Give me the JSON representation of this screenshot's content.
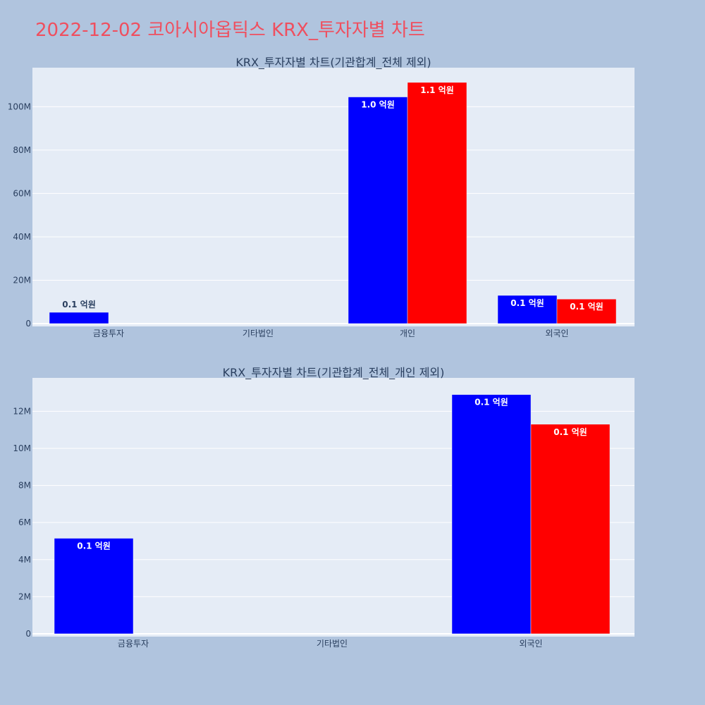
{
  "page": {
    "title": "2022-12-02 코아시아옵틱스 KRX_투자자별 차트"
  },
  "colors": {
    "paper": "#b0c4de",
    "plot_bg": "#e5ecf6",
    "grid": "#ffffff",
    "series1": "#0000ff",
    "series2": "#ff0000",
    "title": "#ef4f5f",
    "text": "#2a3f5f"
  },
  "chart_data": [
    {
      "type": "bar",
      "title": "KRX_투자자별 차트(기관합계_전체 제외)",
      "categories": [
        "금융투자",
        "기타법인",
        "개인",
        "외국인"
      ],
      "xlabel": "",
      "ylabel": "",
      "ylim": [
        0,
        118000000
      ],
      "yticks": [
        0,
        20000000,
        40000000,
        60000000,
        80000000,
        100000000
      ],
      "ytick_labels": [
        "0",
        "20M",
        "40M",
        "60M",
        "80M",
        "100M"
      ],
      "grid": true,
      "series": [
        {
          "color": "#0000ff",
          "values": [
            5200000,
            null,
            104500000,
            13000000
          ],
          "labels": [
            "0.1 억원",
            "",
            "1.0 억원",
            "0.1 억원"
          ]
        },
        {
          "color": "#ff0000",
          "values": [
            null,
            null,
            111200000,
            11300000
          ],
          "labels": [
            "",
            "",
            "1.1 억원",
            "0.1 억원"
          ]
        }
      ]
    },
    {
      "type": "bar",
      "title": "KRX_투자자별 차트(기관합계_전체_개인 제외)",
      "categories": [
        "금융투자",
        "기타법인",
        "외국인"
      ],
      "xlabel": "",
      "ylabel": "",
      "ylim": [
        0,
        13800000
      ],
      "yticks": [
        0,
        2000000,
        4000000,
        6000000,
        8000000,
        10000000,
        12000000
      ],
      "ytick_labels": [
        "0",
        "2M",
        "4M",
        "6M",
        "8M",
        "10M",
        "12M"
      ],
      "grid": true,
      "series": [
        {
          "color": "#0000ff",
          "values": [
            5150000,
            null,
            12900000
          ],
          "labels": [
            "0.1 억원",
            "",
            "0.1 억원"
          ]
        },
        {
          "color": "#ff0000",
          "values": [
            null,
            null,
            11300000
          ],
          "labels": [
            "",
            "",
            "0.1 억원"
          ]
        }
      ]
    }
  ]
}
